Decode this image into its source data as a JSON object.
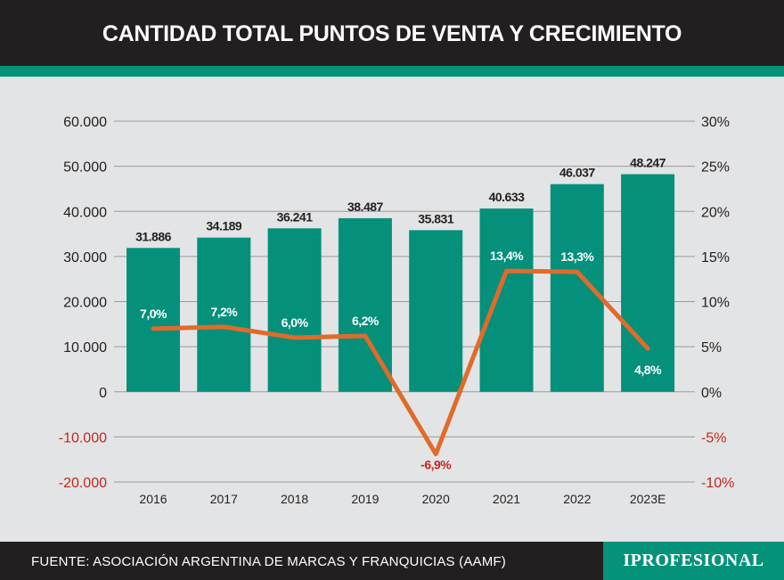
{
  "header": {
    "title": "CANTIDAD TOTAL PUNTOS DE VENTA Y CRECIMIENTO"
  },
  "footer": {
    "source": "FUENTE: ASOCIACIÓN ARGENTINA DE MARCAS Y FRANQUICIAS (AAMF)",
    "logo": "IPROFESIONAL"
  },
  "colors": {
    "bar": "#04907b",
    "line": "#e06b2b",
    "negative_tick": "#c4261d",
    "header_bg": "#231f20",
    "accent": "#04927a"
  },
  "chart_data": {
    "type": "bar",
    "title": "CANTIDAD TOTAL PUNTOS DE VENTA Y CRECIMIENTO",
    "categories": [
      "2016",
      "2017",
      "2018",
      "2019",
      "2020",
      "2021",
      "2022",
      "2023E"
    ],
    "series": [
      {
        "name": "Puntos de venta",
        "type": "bar",
        "axis": "left",
        "values": [
          31886,
          34189,
          36241,
          38487,
          35831,
          40633,
          46037,
          48247
        ],
        "labels": [
          "31.886",
          "34.189",
          "36.241",
          "38.487",
          "35.831",
          "40.633",
          "46.037",
          "48.247"
        ]
      },
      {
        "name": "Crecimiento",
        "type": "line",
        "axis": "right",
        "values": [
          7.0,
          7.2,
          6.0,
          6.2,
          -6.9,
          13.4,
          13.3,
          4.8
        ],
        "labels": [
          "7,0%",
          "7,2%",
          "6,0%",
          "6,2%",
          "-6,9%",
          "13,4%",
          "13,3%",
          "4,8%"
        ]
      }
    ],
    "y_left": {
      "min": -20000,
      "max": 60000,
      "ticks": [
        60000,
        50000,
        40000,
        30000,
        20000,
        10000,
        0,
        -10000,
        -20000
      ],
      "tick_labels": [
        "60.000",
        "50.000",
        "40.000",
        "30.000",
        "20.000",
        "10.000",
        "0",
        "-10.000",
        "-20.000"
      ]
    },
    "y_right": {
      "min": -10,
      "max": 30,
      "ticks": [
        30,
        25,
        20,
        15,
        10,
        5,
        0,
        -5,
        -10
      ],
      "tick_labels": [
        "30%",
        "25%",
        "20%",
        "15%",
        "10%",
        "5%",
        "0%",
        "-5%",
        "-10%"
      ]
    },
    "grid": true
  }
}
